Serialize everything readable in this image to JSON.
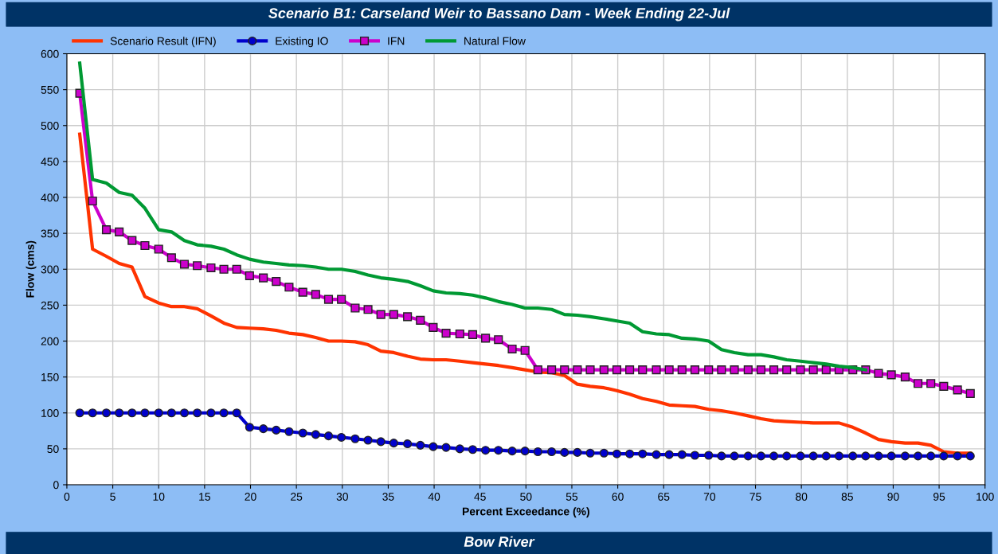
{
  "chart_data": {
    "type": "line",
    "title": "Scenario B1: Carseland Weir to Bassano Dam - Week Ending 22-Jul",
    "xlabel": "Percent Exceedance (%)",
    "ylabel": "Flow (cms)",
    "annotations": [
      "Bow River"
    ],
    "x": [
      1.4,
      2.8,
      4.3,
      5.7,
      7.1,
      8.5,
      10.0,
      11.4,
      12.8,
      14.2,
      15.7,
      17.1,
      18.5,
      19.9,
      21.4,
      22.8,
      24.2,
      25.7,
      27.1,
      28.5,
      29.9,
      31.4,
      32.8,
      34.2,
      35.6,
      37.1,
      38.5,
      39.9,
      41.3,
      42.8,
      44.2,
      45.6,
      47.0,
      48.5,
      49.9,
      51.3,
      52.8,
      54.2,
      55.6,
      57.0,
      58.5,
      59.9,
      61.3,
      62.7,
      64.2,
      65.6,
      67.0,
      68.4,
      69.9,
      71.3,
      72.7,
      74.2,
      75.6,
      77.0,
      78.4,
      79.9,
      81.3,
      82.7,
      84.1,
      85.6,
      87.0,
      88.4,
      89.8,
      91.3,
      92.7,
      94.1,
      95.5,
      97.0,
      98.4
    ],
    "series": [
      {
        "name": "Scenario Result (IFN)",
        "color": "#ff3300",
        "marker": "none",
        "values": [
          488,
          328,
          318,
          308,
          303,
          262,
          253,
          248,
          248,
          245,
          235,
          225,
          219,
          218,
          217,
          215,
          211,
          209,
          205,
          200,
          200,
          199,
          195,
          186,
          184,
          179,
          175,
          174,
          174,
          172,
          170,
          168,
          166,
          163,
          160,
          157,
          156,
          152,
          140,
          137,
          135,
          131,
          126,
          120,
          116,
          111,
          110,
          109,
          105,
          103,
          100,
          96,
          92,
          89,
          88,
          87,
          86,
          86,
          86,
          80,
          72,
          63,
          60,
          58,
          58,
          55,
          46,
          44,
          44
        ]
      },
      {
        "name": "Existing IO",
        "color": "#0000cc",
        "marker": "circle",
        "values": [
          100,
          100,
          100,
          100,
          100,
          100,
          100,
          100,
          100,
          100,
          100,
          100,
          100,
          80,
          78,
          76,
          74,
          72,
          70,
          68,
          66,
          64,
          62,
          60,
          58,
          57,
          55,
          53,
          52,
          50,
          49,
          48,
          48,
          47,
          47,
          46,
          46,
          45,
          45,
          44,
          44,
          43,
          43,
          43,
          42,
          42,
          42,
          41,
          41,
          40,
          40,
          40,
          40,
          40,
          40,
          40,
          40,
          40,
          40,
          40,
          40,
          40,
          40,
          40,
          40,
          40,
          40,
          40,
          40
        ]
      },
      {
        "name": "IFN",
        "color": "#cc00cc",
        "marker": "square",
        "values": [
          545,
          395,
          355,
          352,
          340,
          333,
          328,
          316,
          307,
          305,
          302,
          300,
          300,
          291,
          288,
          283,
          275,
          268,
          265,
          258,
          258,
          246,
          244,
          237,
          237,
          234,
          229,
          219,
          211,
          210,
          209,
          204,
          202,
          189,
          187,
          160,
          160,
          160,
          160,
          160,
          160,
          160,
          160,
          160,
          160,
          160,
          160,
          160,
          160,
          160,
          160,
          160,
          160,
          160,
          160,
          160,
          160,
          160,
          160,
          160,
          160,
          155,
          153,
          150,
          141,
          141,
          137,
          132,
          127
        ]
      },
      {
        "name": "Natural Flow",
        "color": "#009933",
        "marker": "none",
        "values": [
          587,
          425,
          420,
          407,
          403,
          385,
          355,
          352,
          340,
          334,
          332,
          328,
          320,
          314,
          310,
          308,
          306,
          305,
          303,
          300,
          300,
          297,
          292,
          288,
          286,
          283,
          277,
          270,
          267,
          266,
          264,
          260,
          255,
          251,
          246,
          246,
          244,
          237,
          236,
          234,
          231,
          228,
          225,
          213,
          210,
          209,
          204,
          203,
          200,
          188,
          184,
          181,
          181,
          178,
          174,
          172,
          170,
          168,
          165,
          163,
          160,
          null,
          null,
          null,
          null,
          null,
          null,
          null,
          null
        ]
      }
    ],
    "xlim": [
      0,
      100
    ],
    "xticks": [
      0,
      5,
      10,
      15,
      20,
      25,
      30,
      35,
      40,
      45,
      50,
      55,
      60,
      65,
      70,
      75,
      80,
      85,
      90,
      95,
      100
    ],
    "ylim": [
      0,
      600
    ],
    "yticks": [
      0,
      50,
      100,
      150,
      200,
      250,
      300,
      350,
      400,
      450,
      500,
      550,
      600
    ],
    "grid": true,
    "legend": "top left",
    "line_style": "solid"
  }
}
